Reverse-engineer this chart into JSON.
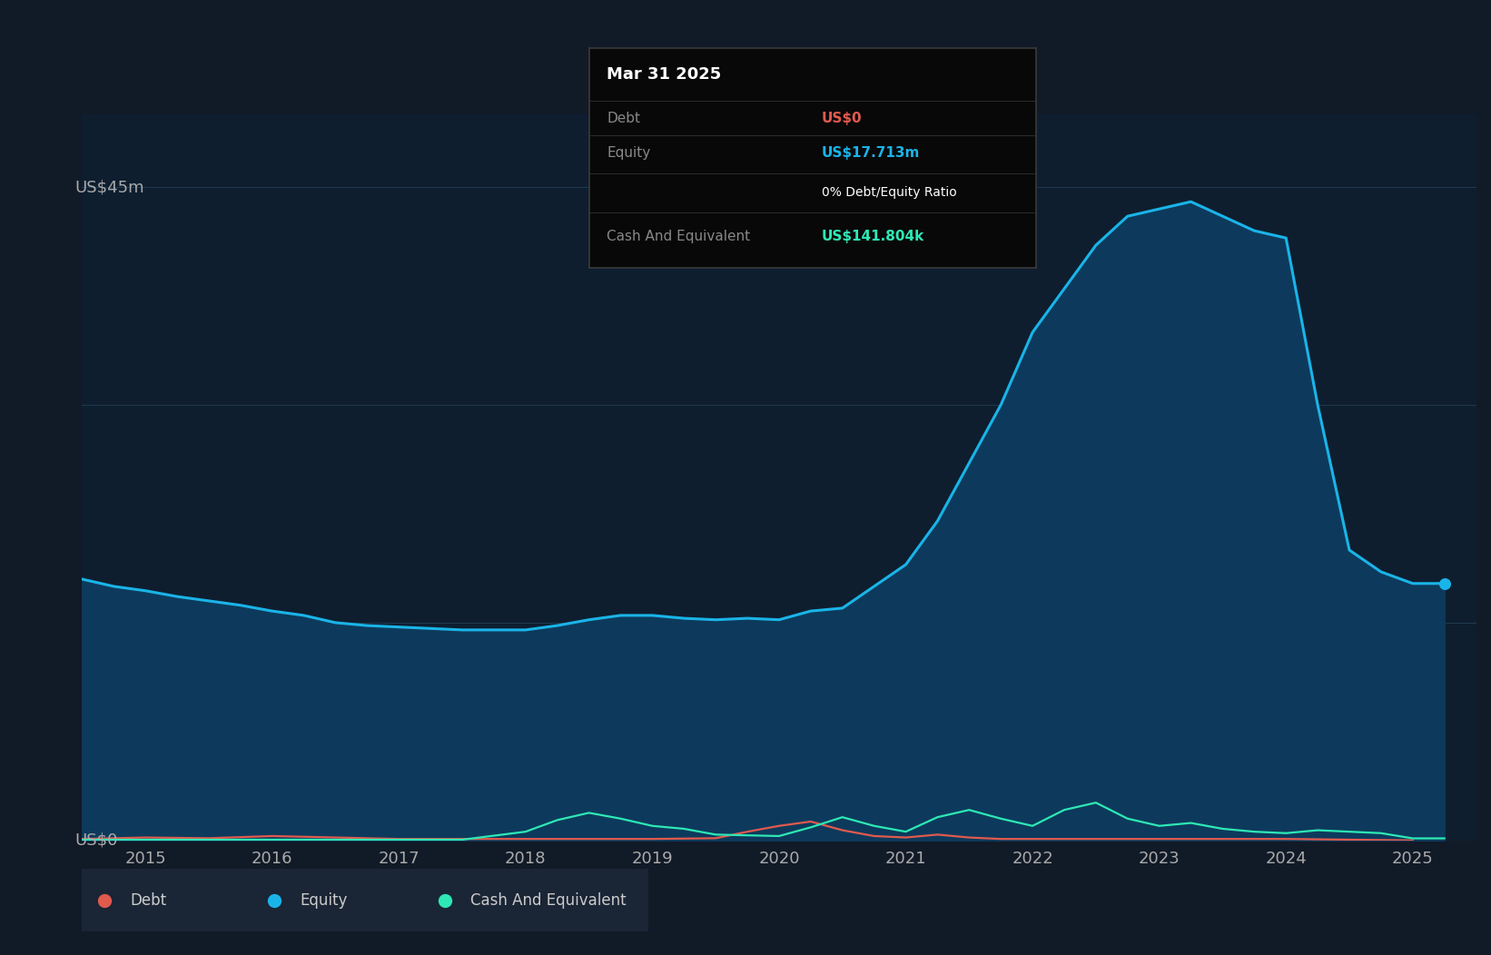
{
  "background_color": "#111a27",
  "plot_bg_color": "#0e1e2f",
  "grid_color": "#1e3a50",
  "equity_color": "#1ab4e8",
  "debt_color": "#e05a4e",
  "cash_color": "#2ee8b5",
  "equity_fill": "#0d3a5c",
  "x_tick_labels": [
    "2015",
    "2016",
    "2017",
    "2018",
    "2019",
    "2020",
    "2021",
    "2022",
    "2023",
    "2024",
    "2025"
  ],
  "ytop_label": "US$45m",
  "yzero_label": "US$0",
  "tooltip": {
    "date": "Mar 31 2025",
    "debt_label": "Debt",
    "debt_value": "US$0",
    "debt_color": "#e05a4e",
    "equity_label": "Equity",
    "equity_value": "US$17.713m",
    "equity_color": "#1ab4e8",
    "ratio_text": "0% Debt/Equity Ratio",
    "cash_label": "Cash And Equivalent",
    "cash_value": "US$141.804k",
    "cash_color": "#2ee8b5",
    "bg_color": "#080808",
    "border_color": "#3a3a3a"
  },
  "legend": [
    {
      "label": "Debt",
      "color": "#e05a4e"
    },
    {
      "label": "Equity",
      "color": "#1ab4e8"
    },
    {
      "label": "Cash And Equivalent",
      "color": "#2ee8b5"
    }
  ],
  "equity_x": [
    2014.5,
    2014.75,
    2015.0,
    2015.25,
    2015.5,
    2015.75,
    2016.0,
    2016.25,
    2016.5,
    2016.75,
    2017.0,
    2017.25,
    2017.5,
    2017.75,
    2018.0,
    2018.25,
    2018.5,
    2018.75,
    2019.0,
    2019.25,
    2019.5,
    2019.75,
    2020.0,
    2020.25,
    2020.5,
    2020.75,
    2021.0,
    2021.25,
    2021.5,
    2021.75,
    2022.0,
    2022.25,
    2022.5,
    2022.75,
    2023.0,
    2023.25,
    2023.5,
    2023.75,
    2024.0,
    2024.25,
    2024.5,
    2024.75,
    2025.0,
    2025.25
  ],
  "equity_y": [
    18.0,
    17.5,
    17.2,
    16.8,
    16.5,
    16.2,
    15.8,
    15.5,
    15.0,
    14.8,
    14.7,
    14.6,
    14.5,
    14.5,
    14.5,
    14.8,
    15.2,
    15.5,
    15.5,
    15.3,
    15.2,
    15.3,
    15.2,
    15.8,
    16.0,
    17.5,
    19.0,
    22.0,
    26.0,
    30.0,
    35.0,
    38.0,
    41.0,
    43.0,
    43.5,
    44.0,
    43.0,
    42.0,
    41.5,
    30.0,
    20.0,
    18.5,
    17.7,
    17.7
  ],
  "debt_x": [
    2014.5,
    2015.0,
    2015.5,
    2016.0,
    2016.5,
    2017.0,
    2017.5,
    2018.0,
    2018.5,
    2019.0,
    2019.5,
    2019.75,
    2020.0,
    2020.25,
    2020.5,
    2020.75,
    2021.0,
    2021.25,
    2021.5,
    2021.75,
    2022.0,
    2022.5,
    2023.0,
    2023.5,
    2024.0,
    2024.5,
    2025.0
  ],
  "debt_y": [
    0.1,
    0.2,
    0.15,
    0.3,
    0.2,
    0.1,
    0.1,
    0.1,
    0.1,
    0.1,
    0.15,
    0.6,
    1.0,
    1.3,
    0.7,
    0.3,
    0.2,
    0.4,
    0.2,
    0.1,
    0.1,
    0.1,
    0.1,
    0.1,
    0.1,
    0.05,
    0.0
  ],
  "cash_x": [
    2014.5,
    2015.0,
    2015.5,
    2016.0,
    2016.5,
    2017.0,
    2017.5,
    2018.0,
    2018.25,
    2018.5,
    2018.75,
    2019.0,
    2019.25,
    2019.5,
    2020.0,
    2020.25,
    2020.5,
    2020.75,
    2021.0,
    2021.25,
    2021.5,
    2021.75,
    2022.0,
    2022.25,
    2022.5,
    2022.75,
    2023.0,
    2023.25,
    2023.5,
    2023.75,
    2024.0,
    2024.25,
    2024.75,
    2025.0,
    2025.25
  ],
  "cash_y": [
    0.05,
    0.05,
    0.05,
    0.05,
    0.05,
    0.05,
    0.05,
    0.6,
    1.4,
    1.9,
    1.5,
    1.0,
    0.8,
    0.4,
    0.3,
    0.9,
    1.6,
    1.0,
    0.6,
    1.6,
    2.1,
    1.5,
    1.0,
    2.1,
    2.6,
    1.5,
    1.0,
    1.2,
    0.8,
    0.6,
    0.5,
    0.7,
    0.5,
    0.14,
    0.14
  ],
  "ylim": [
    0,
    50
  ],
  "xlim": [
    2014.5,
    2025.5
  ]
}
